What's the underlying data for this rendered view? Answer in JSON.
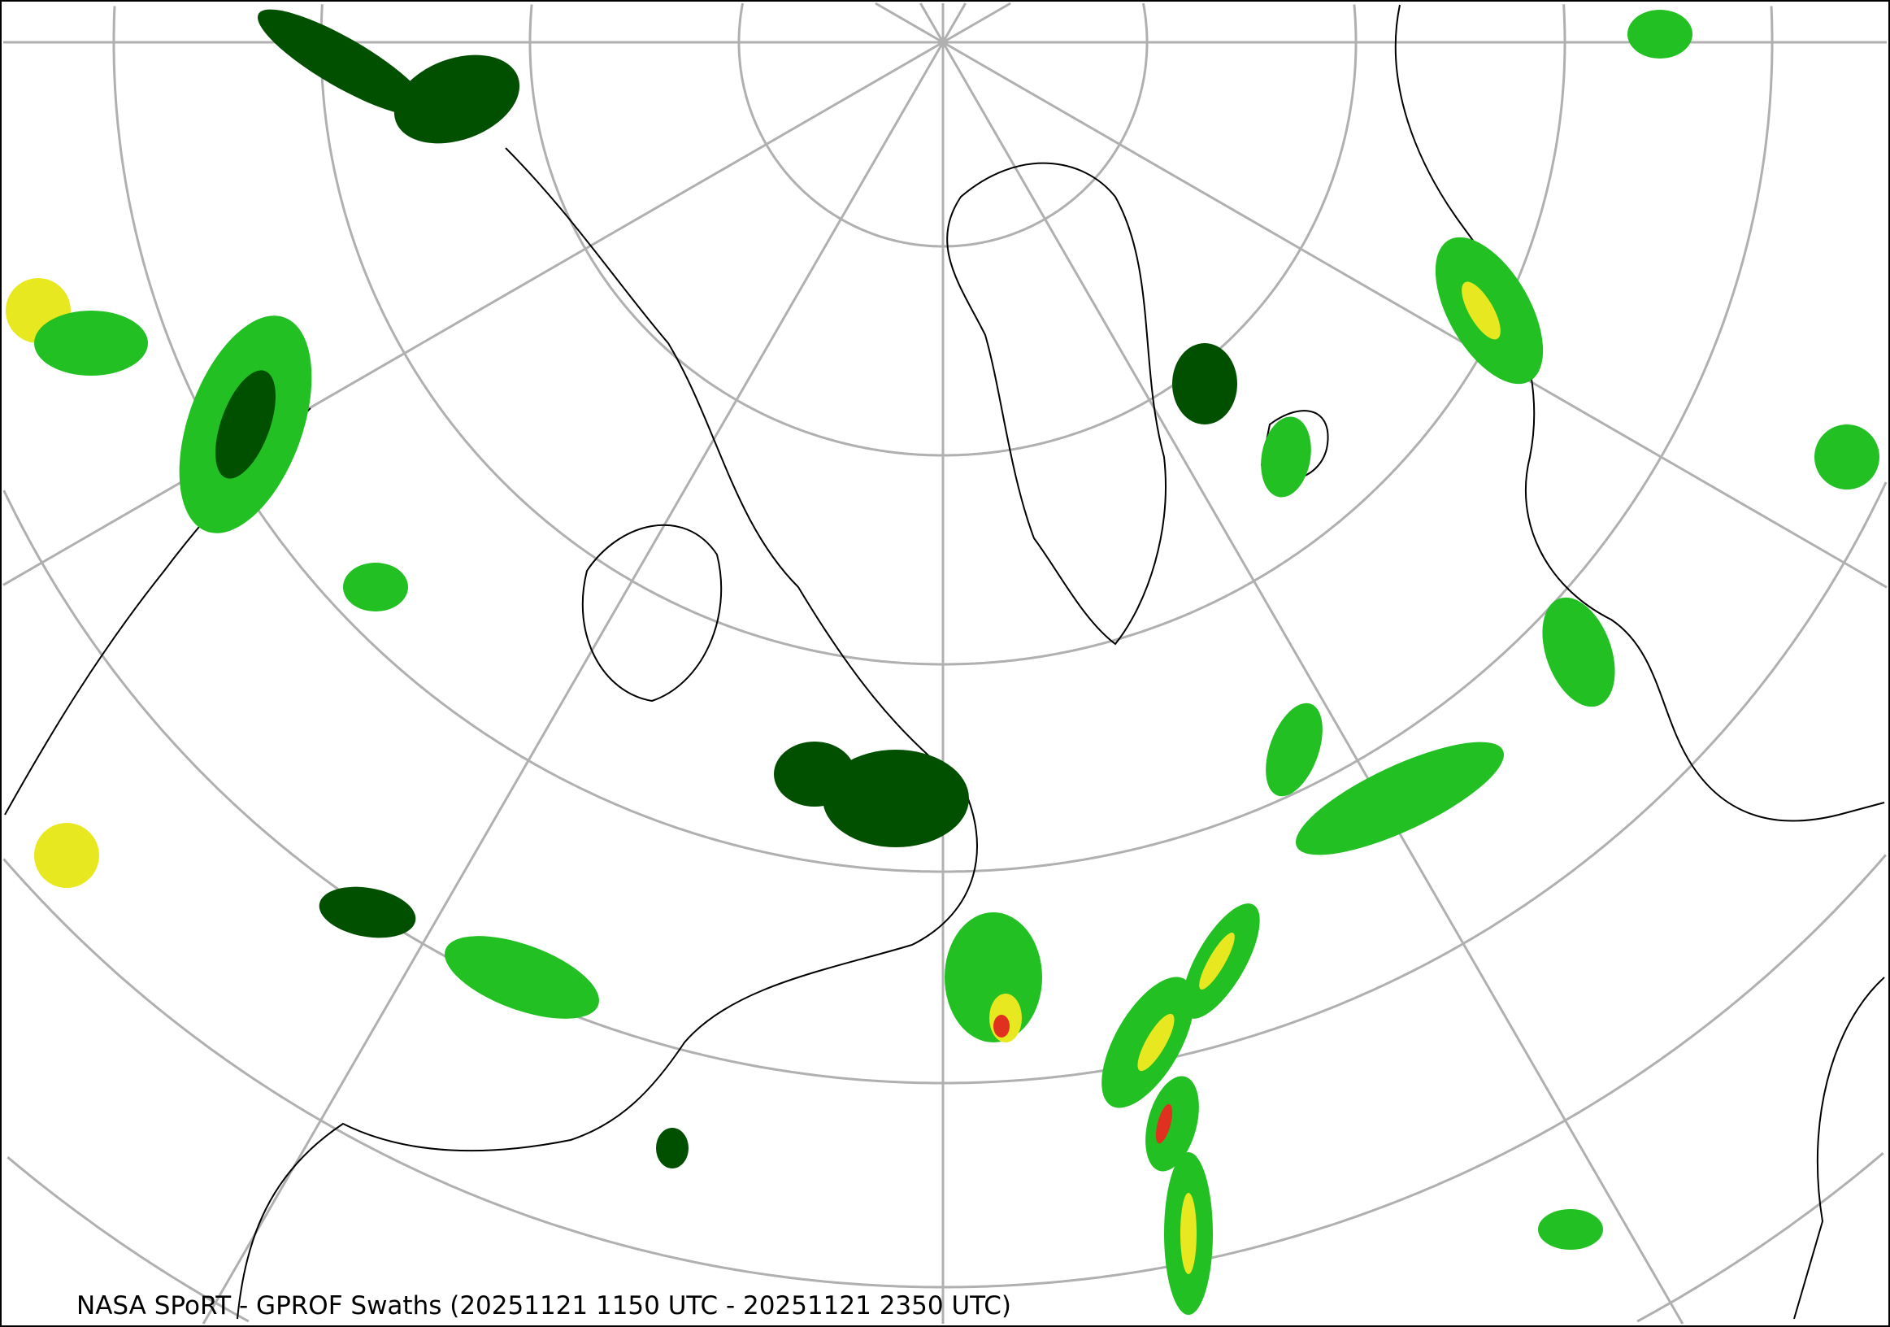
{
  "caption": "NASA SPoRT - GPROF Swaths (20251121 1150 UTC - 20251121 2350 UTC)",
  "colors": {
    "graticule": "#b0b0b0",
    "coastline": "#000000",
    "precip_light": "#005000",
    "precip_mid": "#22c022",
    "precip_heavy": "#e8e820",
    "precip_extreme": "#e03020"
  }
}
